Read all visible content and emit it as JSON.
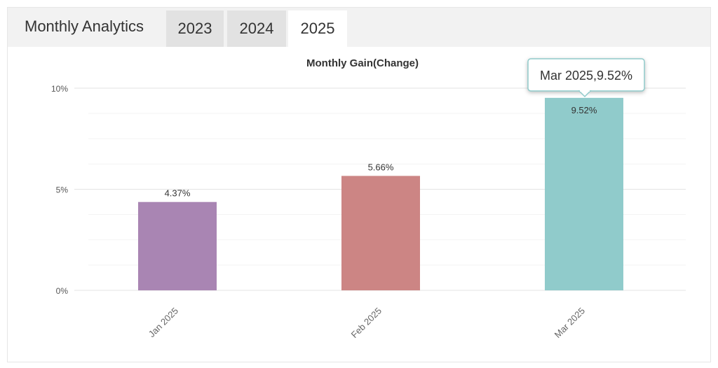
{
  "header": {
    "title": "Monthly Analytics",
    "tabs": [
      {
        "label": "2023",
        "active": false
      },
      {
        "label": "2024",
        "active": false
      },
      {
        "label": "2025",
        "active": true
      }
    ]
  },
  "tooltip": {
    "text": "Mar 2025,9.52%"
  },
  "chart_data": {
    "type": "bar",
    "title": "Monthly Gain(Change)",
    "categories": [
      "Jan 2025",
      "Feb 2025",
      "Mar 2025"
    ],
    "values": [
      4.37,
      5.66,
      9.52
    ],
    "data_labels": [
      "4.37%",
      "5.66%",
      "9.52%"
    ],
    "colors": [
      "#a985b3",
      "#cc8584",
      "#90cbcb"
    ],
    "ylim": [
      0,
      10
    ],
    "yticks": [
      0,
      5,
      10
    ],
    "ytick_labels": [
      "0%",
      "5%",
      "10%"
    ],
    "grid": true,
    "legend": false
  }
}
